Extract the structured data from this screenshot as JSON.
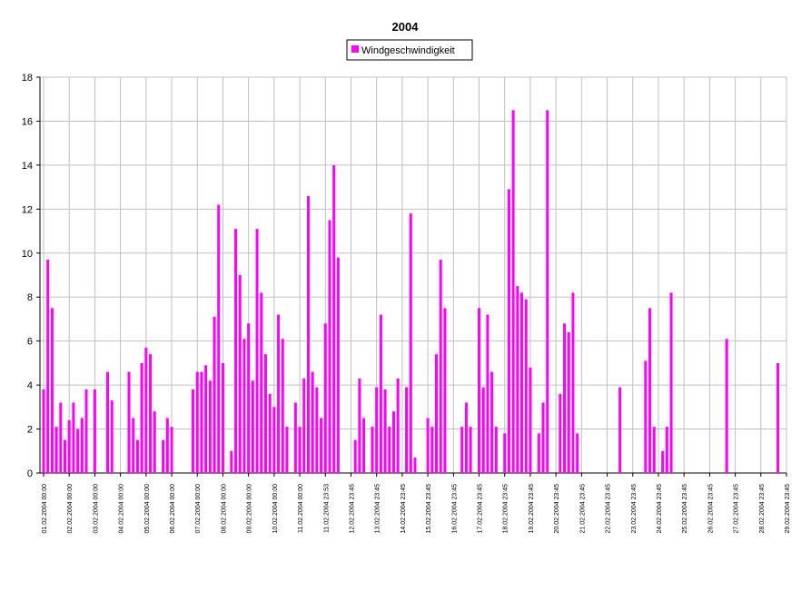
{
  "chart_data": {
    "type": "bar",
    "title": "2004",
    "series": [
      {
        "name": "Windgeschwindigkeit",
        "color": "#ff00ff",
        "values": [
          3.8,
          9.7,
          7.5,
          2.1,
          3.2,
          1.5,
          2.4,
          3.2,
          2.0,
          2.5,
          3.8,
          0,
          3.8,
          0,
          0,
          4.6,
          3.3,
          0,
          0,
          0,
          4.6,
          2.5,
          1.5,
          5.0,
          5.7,
          5.4,
          2.8,
          0,
          1.5,
          2.5,
          2.1,
          0,
          0,
          0,
          0,
          3.8,
          4.6,
          4.6,
          4.9,
          4.2,
          7.1,
          12.2,
          5.0,
          0,
          1.0,
          11.1,
          9.0,
          6.1,
          6.8,
          4.2,
          11.1,
          8.2,
          5.4,
          3.6,
          3.0,
          7.2,
          6.1,
          2.1,
          0,
          3.2,
          2.1,
          4.3,
          12.6,
          4.6,
          3.9,
          2.5,
          6.8,
          11.5,
          14.0,
          9.8,
          0,
          0,
          0,
          1.5,
          4.3,
          2.5,
          0,
          2.1,
          3.9,
          7.2,
          3.8,
          2.1,
          2.8,
          4.3,
          0,
          3.9,
          11.8,
          0.7,
          0,
          0,
          2.5,
          2.1,
          5.4,
          9.7,
          7.5,
          0,
          0,
          0,
          2.1,
          3.2,
          2.1,
          0,
          7.5,
          3.9,
          7.2,
          4.6,
          2.1,
          0,
          1.8,
          12.9,
          16.5,
          8.5,
          8.2,
          7.9,
          4.8,
          0,
          1.8,
          3.2,
          16.5,
          0,
          0,
          3.6,
          6.8,
          6.4,
          8.2,
          1.8,
          0,
          0,
          0,
          0,
          0,
          0,
          0,
          0,
          0,
          3.9,
          0,
          0,
          0,
          0,
          0,
          5.1,
          7.5,
          2.1,
          0,
          1.0,
          2.1,
          8.2,
          0,
          0,
          0,
          0,
          0,
          0,
          0,
          0,
          0,
          0,
          0,
          0,
          6.1,
          0,
          0,
          0,
          0,
          0,
          0,
          0,
          0,
          0,
          0,
          0,
          5.0,
          0,
          0
        ]
      }
    ],
    "categories": [
      "01.02.2004 00:00",
      null,
      null,
      null,
      null,
      null,
      "02.02.2004 00:00",
      null,
      null,
      null,
      null,
      null,
      "03.02.2004 00:00",
      null,
      null,
      null,
      null,
      null,
      "04.02.2004 00:00",
      null,
      null,
      null,
      null,
      null,
      "05.02.2004 00:00",
      null,
      null,
      null,
      null,
      null,
      "06.02.2004 00:00",
      null,
      null,
      null,
      null,
      null,
      "07.02.2004 00:00",
      null,
      null,
      null,
      null,
      null,
      "08.02.2004 00:00",
      null,
      null,
      null,
      null,
      null,
      "09.02.2004 00:00",
      null,
      null,
      null,
      null,
      null,
      "10.02.2004 00:00",
      null,
      null,
      null,
      null,
      null,
      "11.02.2004 00:00",
      null,
      null,
      null,
      null,
      null,
      "11.02.2004 23:53",
      null,
      null,
      null,
      null,
      null,
      "12.02.2004 23:45",
      null,
      null,
      null,
      null,
      null,
      "13.02.2004 23:45",
      null,
      null,
      null,
      null,
      null,
      "14.02.2004 23:45",
      null,
      null,
      null,
      null,
      null,
      "15.02.2004 23:45",
      null,
      null,
      null,
      null,
      null,
      "16.02.2004 23:45",
      null,
      null,
      null,
      null,
      null,
      "17.02.2004 23:45",
      null,
      null,
      null,
      null,
      null,
      "18.02.2004 23:45",
      null,
      null,
      null,
      null,
      null,
      "19.02.2004 23:45",
      null,
      null,
      null,
      null,
      null,
      "20.02.2004 23:45",
      null,
      null,
      null,
      null,
      null,
      "21.02.2004 23:45",
      null,
      null,
      null,
      null,
      null,
      "22.02.2004 23:45",
      null,
      null,
      null,
      null,
      null,
      "23.02.2004 23:45",
      null,
      null,
      null,
      null,
      null,
      "24.02.2004 23:45",
      null,
      null,
      null,
      null,
      null,
      "25.02.2004 23:45",
      null,
      null,
      null,
      null,
      null,
      "26.02.2004 23:45",
      null,
      null,
      null,
      null,
      null,
      "27.02.2004 23:45",
      null,
      null,
      null,
      null,
      null,
      "28.02.2004 23:45",
      null,
      null,
      null,
      null,
      null,
      "29.02.2004 23:45"
    ],
    "ylim": [
      0,
      18
    ],
    "yticks": [
      0,
      2,
      4,
      6,
      8,
      10,
      12,
      14,
      16,
      18
    ],
    "grid": true,
    "legend": "top"
  }
}
